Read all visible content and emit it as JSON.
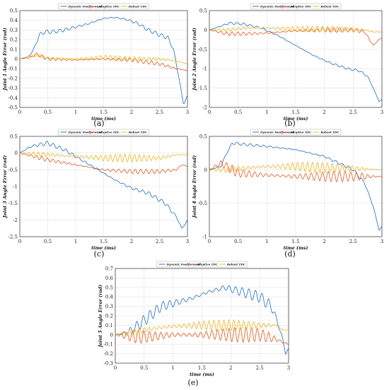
{
  "colors": {
    "dynamic": "#1f6cc0",
    "adaptive": "#e0561a",
    "robust": "#eeb21c"
  },
  "legend_labels": [
    "Dynamic Feedforward",
    "Adaptive TDC",
    "Robust TDC"
  ],
  "chart_data": [
    {
      "type": "line",
      "caption": "(a)",
      "xlabel": "time (ms)",
      "ylabel": "Joint 1 Angle Error (rad)",
      "xlim": [
        0,
        3
      ],
      "ylim": [
        -0.5,
        0.5
      ],
      "xticks": [
        0,
        0.5,
        1,
        1.5,
        2,
        2.5,
        3
      ],
      "yticks": [
        -0.5,
        -0.4,
        -0.3,
        -0.2,
        -0.1,
        0,
        0.1,
        0.2,
        0.3,
        0.4,
        0.5
      ],
      "grid": true,
      "legend": "top",
      "series": [
        {
          "name": "Dynamic Feedforward",
          "color_key": "dynamic",
          "osc": 0.02,
          "x": [
            0,
            0.15,
            0.25,
            0.35,
            0.45,
            0.6,
            0.8,
            1.0,
            1.2,
            1.5,
            1.7,
            1.9,
            2.1,
            2.3,
            2.5,
            2.65,
            2.75,
            2.85,
            2.93,
            3.0
          ],
          "y": [
            0,
            0.02,
            0.1,
            0.25,
            0.28,
            0.28,
            0.3,
            0.33,
            0.36,
            0.42,
            0.43,
            0.41,
            0.37,
            0.3,
            0.25,
            0.22,
            0.1,
            -0.2,
            -0.47,
            -0.38
          ]
        },
        {
          "name": "Adaptive TDC",
          "color_key": "adaptive",
          "osc": 0.02,
          "x": [
            0,
            0.2,
            0.3,
            0.5,
            1.0,
            1.5,
            2.0,
            2.5,
            2.8,
            3.0
          ],
          "y": [
            0,
            0.02,
            0.05,
            0.0,
            -0.01,
            0.0,
            -0.01,
            -0.05,
            -0.1,
            -0.12
          ]
        },
        {
          "name": "Robust TDC",
          "color_key": "robust",
          "osc": 0.025,
          "x": [
            0,
            0.2,
            0.3,
            0.5,
            1.0,
            1.5,
            2.0,
            2.5,
            2.8,
            3.0
          ],
          "y": [
            0,
            0.03,
            0.04,
            0.01,
            0.0,
            0.02,
            0.0,
            0.0,
            -0.02,
            -0.05
          ]
        }
      ]
    },
    {
      "type": "line",
      "caption": "(b)",
      "xlabel": "time (ms)",
      "ylabel": "Joint 2 Angle Error (rad)",
      "xlim": [
        0,
        3
      ],
      "ylim": [
        -2,
        0.5
      ],
      "xticks": [
        0,
        0.5,
        1,
        1.5,
        2,
        2.5,
        3
      ],
      "yticks": [
        -2,
        -1.5,
        -1,
        -0.5,
        0,
        0.5
      ],
      "grid": true,
      "legend": "top",
      "series": [
        {
          "name": "Dynamic Feedforward",
          "color_key": "dynamic",
          "osc": 0.03,
          "x": [
            0,
            0.2,
            0.35,
            0.6,
            0.9,
            1.2,
            1.5,
            1.8,
            2.1,
            2.4,
            2.6,
            2.75,
            2.85,
            2.95,
            3.0
          ],
          "y": [
            0,
            0.1,
            0.18,
            0.15,
            0.05,
            -0.15,
            -0.4,
            -0.65,
            -0.85,
            -1.0,
            -1.05,
            -1.2,
            -1.5,
            -1.85,
            -1.8
          ]
        },
        {
          "name": "Adaptive TDC",
          "color_key": "adaptive",
          "osc": 0.06,
          "x": [
            0,
            0.3,
            0.6,
            1.0,
            1.5,
            2.0,
            2.5,
            2.7,
            2.85,
            2.95,
            3.0
          ],
          "y": [
            0,
            -0.1,
            -0.1,
            -0.08,
            -0.02,
            0.0,
            0.0,
            -0.05,
            -0.4,
            -0.25,
            -0.2
          ]
        },
        {
          "name": "Robust TDC",
          "color_key": "robust",
          "osc": 0.08,
          "x": [
            0,
            0.3,
            0.6,
            1.0,
            1.5,
            2.0,
            2.5,
            2.7,
            2.85,
            3.0
          ],
          "y": [
            0,
            0.0,
            0.05,
            0.05,
            0.03,
            0.02,
            0.02,
            0.0,
            -0.05,
            -0.05
          ]
        }
      ]
    },
    {
      "type": "line",
      "caption": "(c)",
      "xlabel": "time (ms)",
      "ylabel": "Joint 3 Angle Error (rad)",
      "xlim": [
        0,
        3
      ],
      "ylim": [
        -2.5,
        0.5
      ],
      "xticks": [
        0,
        0.5,
        1,
        1.5,
        2,
        2.5,
        3
      ],
      "yticks": [
        -2.5,
        -2,
        -1.5,
        -1,
        -0.5,
        0,
        0.5
      ],
      "grid": true,
      "legend": "top",
      "series": [
        {
          "name": "Dynamic Feedforward",
          "color_key": "dynamic",
          "osc": 0.06,
          "x": [
            0,
            0.2,
            0.5,
            0.8,
            1.1,
            1.4,
            1.7,
            2.0,
            2.3,
            2.6,
            2.8,
            2.9,
            2.95,
            3.0
          ],
          "y": [
            0,
            0.2,
            0.3,
            0.1,
            -0.2,
            -0.5,
            -0.8,
            -1.05,
            -1.2,
            -1.5,
            -1.9,
            -2.25,
            -2.15,
            -2.0
          ]
        },
        {
          "name": "Adaptive TDC",
          "color_key": "adaptive",
          "osc": 0.07,
          "x": [
            0,
            0.5,
            1.0,
            1.5,
            2.0,
            2.5,
            2.8,
            2.9,
            3.0
          ],
          "y": [
            0,
            -0.2,
            -0.35,
            -0.5,
            -0.55,
            -0.55,
            -0.5,
            -0.35,
            -0.4
          ]
        },
        {
          "name": "Robust TDC",
          "color_key": "robust",
          "osc": 0.12,
          "x": [
            0,
            0.5,
            1.0,
            1.5,
            2.0,
            2.5,
            2.8,
            3.0
          ],
          "y": [
            0,
            -0.05,
            -0.1,
            -0.15,
            -0.15,
            -0.15,
            -0.05,
            -0.05
          ]
        }
      ]
    },
    {
      "type": "line",
      "caption": "(d)",
      "xlabel": "time (ms)",
      "ylabel": "Joint 4 Angle Error (rad)",
      "xlim": [
        0,
        3
      ],
      "ylim": [
        -1,
        0.5
      ],
      "xticks": [
        0,
        0.5,
        1,
        1.5,
        2,
        2.5,
        3
      ],
      "yticks": [
        -1,
        -0.5,
        0,
        0.5
      ],
      "grid": true,
      "legend": "top",
      "series": [
        {
          "name": "Dynamic Feedforward",
          "color_key": "dynamic",
          "osc": 0.02,
          "x": [
            0,
            0.2,
            0.3,
            0.4,
            0.6,
            1.0,
            1.5,
            2.0,
            2.5,
            2.7,
            2.85,
            2.95,
            3.0
          ],
          "y": [
            0,
            0.05,
            0.25,
            0.4,
            0.38,
            0.35,
            0.3,
            0.2,
            0.0,
            -0.2,
            -0.55,
            -0.9,
            -0.85
          ]
        },
        {
          "name": "Adaptive TDC",
          "color_key": "adaptive",
          "osc": 0.08,
          "x": [
            0,
            0.2,
            0.3,
            0.5,
            1.0,
            1.5,
            2.0,
            2.5,
            3.0
          ],
          "y": [
            0,
            0.1,
            0.05,
            -0.05,
            -0.08,
            -0.1,
            -0.1,
            -0.1,
            -0.1
          ]
        },
        {
          "name": "Robust TDC",
          "color_key": "robust",
          "osc": 0.08,
          "x": [
            0,
            0.3,
            0.5,
            1.0,
            1.5,
            2.0,
            2.5,
            3.0
          ],
          "y": [
            0,
            0.0,
            0.02,
            0.05,
            0.05,
            0.03,
            0.02,
            0.0
          ]
        }
      ]
    },
    {
      "type": "line",
      "caption": "(e)",
      "xlabel": "time (ms)",
      "ylabel": "Joint 5 Angle Error (rad)",
      "xlim": [
        0,
        3
      ],
      "ylim": [
        -0.3,
        0.7
      ],
      "xticks": [
        0,
        0.5,
        1,
        1.5,
        2,
        2.5,
        3
      ],
      "yticks": [
        -0.3,
        -0.2,
        -0.1,
        0,
        0.1,
        0.2,
        0.3,
        0.4,
        0.5,
        0.6,
        0.7
      ],
      "grid": true,
      "legend": "top",
      "series": [
        {
          "name": "Dynamic Feedforward",
          "color_key": "dynamic",
          "osc": 0.06,
          "x": [
            0,
            0.2,
            0.4,
            0.6,
            0.8,
            1.0,
            1.3,
            1.6,
            1.9,
            2.2,
            2.5,
            2.7,
            2.8,
            2.9,
            2.95,
            3.0
          ],
          "y": [
            0,
            0.02,
            0.1,
            0.2,
            0.3,
            0.33,
            0.38,
            0.45,
            0.5,
            0.45,
            0.4,
            0.3,
            0.15,
            -0.05,
            -0.2,
            -0.15
          ]
        },
        {
          "name": "Adaptive TDC",
          "color_key": "adaptive",
          "osc": 0.08,
          "x": [
            0,
            0.3,
            0.6,
            1.0,
            1.5,
            2.0,
            2.5,
            2.8,
            2.9,
            3.0
          ],
          "y": [
            0,
            -0.02,
            -0.02,
            0.0,
            0.0,
            0.0,
            0.0,
            -0.05,
            -0.08,
            -0.1
          ]
        },
        {
          "name": "Robust TDC",
          "color_key": "robust",
          "osc": 0.06,
          "x": [
            0,
            0.3,
            0.6,
            1.0,
            1.5,
            2.0,
            2.5,
            2.8,
            2.9,
            3.0
          ],
          "y": [
            0,
            0.03,
            0.06,
            0.09,
            0.1,
            0.1,
            0.1,
            0.1,
            0.05,
            0.05
          ]
        }
      ]
    }
  ]
}
